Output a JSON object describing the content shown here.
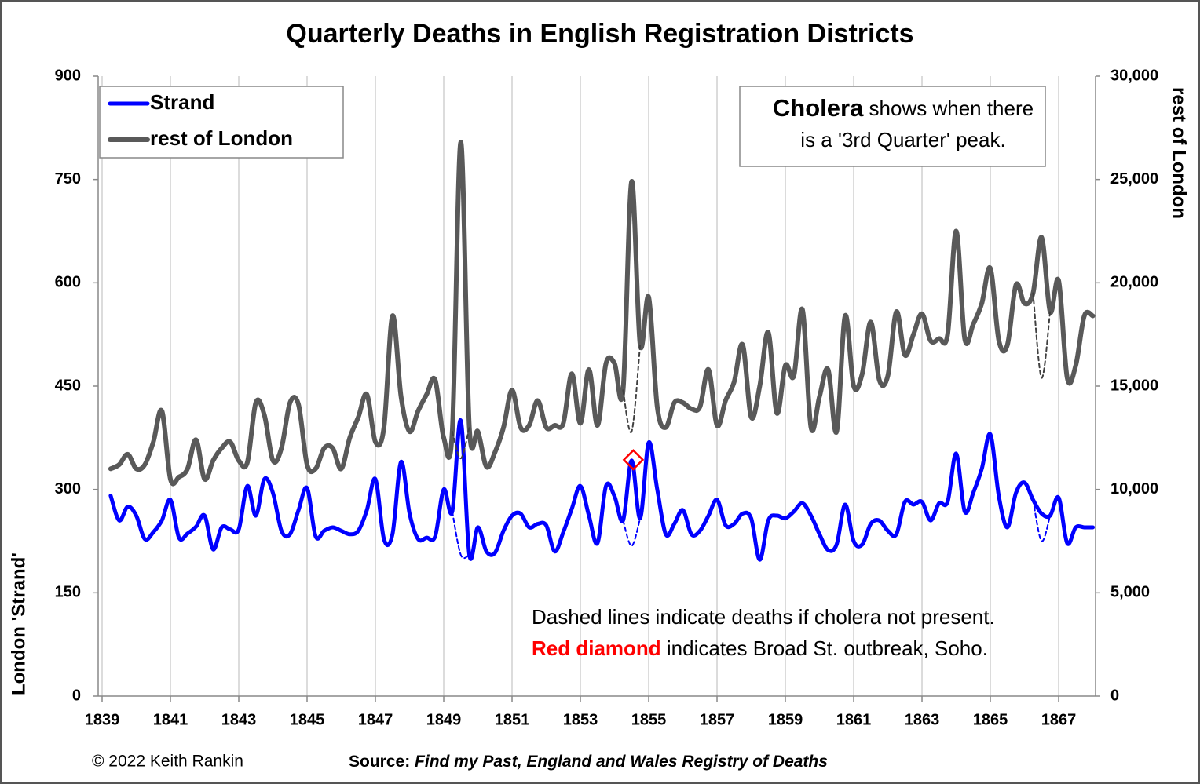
{
  "chart_data": {
    "type": "line",
    "title": "Quarterly Deaths in English Registration Districts",
    "ylabel": "London 'Strand'",
    "y2label": "rest of London",
    "annotation_box": {
      "bold": "Cholera",
      "text1": " shows when there",
      "text2": "is a '3rd Quarter' peak."
    },
    "note1": "Dashed lines indicate deaths if cholera not present.",
    "note2": {
      "red": "Red diamond",
      "text": " indicates Broad St. outbreak, Soho."
    },
    "copyright": "© 2022 Keith Rankin",
    "source": {
      "label": "Source:",
      "text": "Find my Past, England and Wales Registry of Deaths"
    },
    "xlim": [
      1838.885,
      1868.08
    ],
    "xticks": [
      1839,
      1841,
      1843,
      1845,
      1847,
      1849,
      1851,
      1853,
      1855,
      1857,
      1859,
      1861,
      1863,
      1865,
      1867
    ],
    "ylim": [
      0,
      900
    ],
    "yticks": [
      0,
      150,
      300,
      450,
      600,
      750,
      900
    ],
    "y2lim": [
      0,
      30000
    ],
    "y2ticks": [
      0,
      {
        "value": 5000,
        "label": "5,000"
      },
      {
        "value": 10000,
        "label": "10,000"
      },
      {
        "value": 15000,
        "label": "15,000"
      },
      {
        "value": 20000,
        "label": "20,000"
      },
      {
        "value": 25000,
        "label": "25,000"
      },
      {
        "value": 30000,
        "label": "30,000"
      }
    ],
    "grid": true,
    "legend": "upper left",
    "x": [
      1839.25,
      1839.5,
      1839.75,
      1840,
      1840.25,
      1840.5,
      1840.75,
      1841,
      1841.25,
      1841.5,
      1841.75,
      1842,
      1842.25,
      1842.5,
      1842.75,
      1843,
      1843.25,
      1843.5,
      1843.75,
      1844,
      1844.25,
      1844.5,
      1844.75,
      1845,
      1845.25,
      1845.5,
      1845.75,
      1846,
      1846.25,
      1846.5,
      1846.75,
      1847,
      1847.25,
      1847.5,
      1847.75,
      1848,
      1848.25,
      1848.5,
      1848.75,
      1849,
      1849.25,
      1849.5,
      1849.75,
      1850,
      1850.25,
      1850.5,
      1850.75,
      1851,
      1851.25,
      1851.5,
      1851.75,
      1852,
      1852.25,
      1852.5,
      1852.75,
      1853,
      1853.25,
      1853.5,
      1853.75,
      1854,
      1854.25,
      1854.5,
      1854.75,
      1855,
      1855.25,
      1855.5,
      1855.75,
      1856,
      1856.25,
      1856.5,
      1856.75,
      1857,
      1857.25,
      1857.5,
      1857.75,
      1858,
      1858.25,
      1858.5,
      1858.75,
      1859,
      1859.25,
      1859.5,
      1859.75,
      1860,
      1860.25,
      1860.5,
      1860.75,
      1861,
      1861.25,
      1861.5,
      1861.75,
      1862,
      1862.25,
      1862.5,
      1862.75,
      1863,
      1863.25,
      1863.5,
      1863.75,
      1864,
      1864.25,
      1864.5,
      1864.75,
      1865,
      1865.25,
      1865.5,
      1865.75,
      1866,
      1866.25,
      1866.5,
      1866.75,
      1867,
      1867.25,
      1867.5,
      1867.75,
      1868
    ],
    "series": [
      {
        "name": "Strand",
        "color": "#0000ff",
        "width": 5,
        "axis": "y",
        "values": [
          291,
          255,
          275,
          262,
          228,
          238,
          255,
          285,
          230,
          236,
          246,
          262,
          213,
          245,
          242,
          242,
          305,
          262,
          315,
          295,
          240,
          235,
          270,
          302,
          232,
          240,
          245,
          240,
          235,
          240,
          270,
          315,
          228,
          235,
          340,
          265,
          228,
          230,
          232,
          300,
          268,
          400,
          205,
          245,
          210,
          208,
          240,
          262,
          265,
          245,
          250,
          248,
          210,
          238,
          272,
          305,
          262,
          222,
          305,
          290,
          255,
          342,
          258,
          368,
          300,
          235,
          250,
          270,
          235,
          240,
          262,
          285,
          248,
          250,
          265,
          258,
          198,
          255,
          262,
          258,
          268,
          280,
          262,
          235,
          212,
          220,
          278,
          225,
          220,
          250,
          255,
          240,
          235,
          282,
          278,
          282,
          255,
          280,
          282,
          352,
          268,
          295,
          330,
          380,
          290,
          245,
          295,
          310,
          285,
          265,
          262,
          288,
          222,
          245,
          245,
          245
        ]
      },
      {
        "name": "rest of London",
        "color": "#595959",
        "width": 6,
        "axis": "y2",
        "values": [
          11000,
          11200,
          11700,
          11000,
          11200,
          12300,
          13800,
          10500,
          10600,
          11000,
          12400,
          10500,
          11400,
          12000,
          12300,
          11400,
          11300,
          14200,
          13600,
          11400,
          12000,
          14200,
          14100,
          11200,
          11000,
          12000,
          12000,
          11000,
          12500,
          13500,
          14600,
          12300,
          13000,
          18400,
          14500,
          12800,
          13800,
          14600,
          15300,
          12500,
          12800,
          26800,
          13000,
          12800,
          11100,
          11800,
          13000,
          14800,
          13000,
          13100,
          14300,
          13000,
          13100,
          13200,
          15600,
          13200,
          15800,
          13100,
          16100,
          16100,
          14800,
          24900,
          17000,
          19300,
          14000,
          13000,
          14200,
          14200,
          13900,
          14000,
          15800,
          13100,
          14300,
          15200,
          17000,
          13500,
          15000,
          17600,
          13700,
          16000,
          15500,
          18700,
          13000,
          14500,
          15800,
          12800,
          18400,
          15000,
          15600,
          18100,
          15300,
          15500,
          18600,
          16500,
          17500,
          18500,
          17200,
          17300,
          17500,
          22500,
          17300,
          18000,
          19000,
          20700,
          17200,
          17000,
          19900,
          19000,
          19500,
          22200,
          18600,
          20100,
          15400,
          16000,
          18400,
          18400
        ]
      }
    ],
    "dashed_series": [
      {
        "color": "#0000ff",
        "axis": "y",
        "x": [
          1849.25,
          1849.5,
          1849.75,
          null,
          1854.25,
          1854.5,
          1854.75,
          null,
          1866.25,
          1866.5,
          1866.75
        ],
        "values": [
          268,
          205,
          205,
          null,
          255,
          218,
          258,
          null,
          285,
          225,
          262
        ]
      },
      {
        "color": "#404040",
        "axis": "y2",
        "x": [
          1849.25,
          1849.5,
          1849.75,
          null,
          1854.25,
          1854.5,
          1854.75,
          null,
          1866.25,
          1866.5,
          1866.75
        ],
        "values": [
          12800,
          11500,
          13000,
          null,
          14800,
          12800,
          17000,
          null,
          19500,
          15400,
          18600
        ]
      }
    ],
    "marker": {
      "x": 1854.55,
      "y": 343,
      "color": "#ff0000"
    }
  }
}
